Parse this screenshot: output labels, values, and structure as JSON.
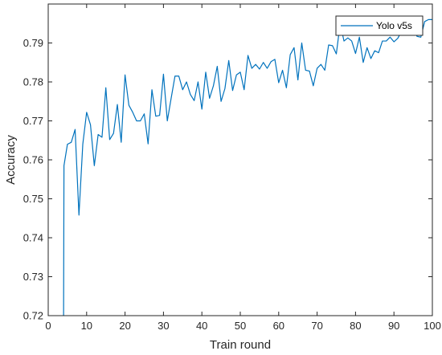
{
  "chart_data": {
    "type": "line",
    "title": "",
    "xlabel": "Train round",
    "ylabel": "Accuracy",
    "xlim": [
      0,
      100
    ],
    "ylim": [
      0.72,
      0.8
    ],
    "xticks": [
      0,
      10,
      20,
      30,
      40,
      50,
      60,
      70,
      80,
      90,
      100
    ],
    "yticks": [
      0.72,
      0.73,
      0.74,
      0.75,
      0.76,
      0.77,
      0.78,
      0.79
    ],
    "xtick_labels": [
      "0",
      "10",
      "20",
      "30",
      "40",
      "50",
      "60",
      "70",
      "80",
      "90",
      "100"
    ],
    "ytick_labels": [
      "0.72",
      "0.73",
      "0.74",
      "0.75",
      "0.76",
      "0.77",
      "0.78",
      "0.79"
    ],
    "legend_position": "top-right",
    "grid": false,
    "series": [
      {
        "name": "Yolo v5s",
        "color": "#0072BD",
        "x": [
          4,
          4.1,
          5,
          6,
          7,
          8,
          9,
          10,
          11,
          12,
          13,
          14,
          15,
          16,
          17,
          18,
          19,
          20,
          21,
          22,
          23,
          24,
          25,
          26,
          27,
          28,
          29,
          30,
          31,
          32,
          33,
          34,
          35,
          36,
          37,
          38,
          39,
          40,
          41,
          42,
          43,
          44,
          45,
          46,
          47,
          48,
          49,
          50,
          51,
          52,
          53,
          54,
          55,
          56,
          57,
          58,
          59,
          60,
          61,
          62,
          63,
          64,
          65,
          66,
          67,
          68,
          69,
          70,
          71,
          72,
          73,
          74,
          75,
          76,
          77,
          78,
          79,
          80,
          81,
          82,
          83,
          84,
          85,
          86,
          87,
          88,
          89,
          90,
          91,
          92,
          93,
          94,
          95,
          96,
          97,
          98,
          99,
          100
        ],
        "y": [
          0.72,
          0.7585,
          0.764,
          0.7645,
          0.7678,
          0.7458,
          0.764,
          0.7722,
          0.769,
          0.7585,
          0.7665,
          0.7658,
          0.7785,
          0.7652,
          0.7668,
          0.7742,
          0.7645,
          0.7818,
          0.774,
          0.7722,
          0.77,
          0.77,
          0.7718,
          0.7641,
          0.778,
          0.7712,
          0.7714,
          0.782,
          0.77,
          0.7758,
          0.7815,
          0.7815,
          0.778,
          0.78,
          0.7768,
          0.7752,
          0.78,
          0.773,
          0.7825,
          0.7758,
          0.779,
          0.784,
          0.775,
          0.7783,
          0.7855,
          0.7778,
          0.7818,
          0.7825,
          0.778,
          0.7868,
          0.7835,
          0.7845,
          0.7833,
          0.785,
          0.7835,
          0.7852,
          0.7858,
          0.7798,
          0.783,
          0.7785,
          0.787,
          0.7888,
          0.7805,
          0.79,
          0.783,
          0.7828,
          0.779,
          0.7835,
          0.7845,
          0.783,
          0.7895,
          0.7893,
          0.7872,
          0.795,
          0.7905,
          0.7913,
          0.7905,
          0.7873,
          0.7915,
          0.785,
          0.7888,
          0.786,
          0.788,
          0.7875,
          0.7905,
          0.7905,
          0.7915,
          0.7903,
          0.7912,
          0.793,
          0.7922,
          0.7946,
          0.7938,
          0.7917,
          0.7915,
          0.7955,
          0.796,
          0.796
        ]
      }
    ]
  }
}
